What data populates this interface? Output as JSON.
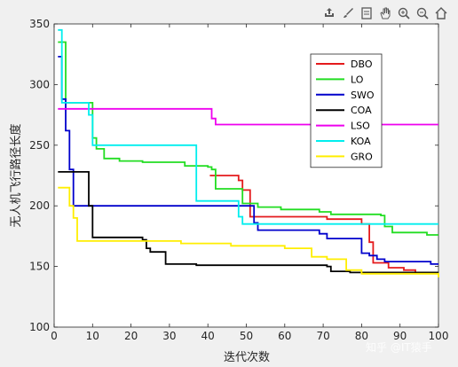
{
  "toolbar": {
    "icons": [
      "export-icon",
      "brush-icon",
      "datatip-icon",
      "pan-icon",
      "zoom-in-icon",
      "zoom-out-icon",
      "home-icon"
    ]
  },
  "watermark": "知乎 @IT猿手",
  "chart_data": {
    "type": "line",
    "ylabel": "无人机飞行路径长度",
    "xlabel": "迭代次数",
    "xlim": [
      0,
      100
    ],
    "ylim": [
      100,
      350
    ],
    "xticks": [
      0,
      10,
      20,
      30,
      40,
      50,
      60,
      70,
      80,
      90,
      100
    ],
    "yticks": [
      100,
      150,
      200,
      250,
      300,
      350
    ],
    "grid": false,
    "legend_position": "top-right",
    "series": [
      {
        "name": "DBO",
        "color": "#e41a1c",
        "points": [
          [
            40.5,
            225
          ],
          [
            48,
            225
          ],
          [
            48,
            221
          ],
          [
            49,
            221
          ],
          [
            49,
            213
          ],
          [
            51,
            213
          ],
          [
            51,
            191
          ],
          [
            71,
            191
          ],
          [
            71,
            189
          ],
          [
            80,
            189
          ],
          [
            80,
            185
          ],
          [
            82,
            185
          ],
          [
            82,
            170
          ],
          [
            83,
            170
          ],
          [
            83,
            153
          ],
          [
            87,
            153
          ],
          [
            87,
            149
          ],
          [
            91,
            149
          ],
          [
            91,
            147
          ],
          [
            94,
            147
          ],
          [
            94,
            145
          ],
          [
            100,
            145
          ]
        ]
      },
      {
        "name": "LO",
        "color": "#22dd22",
        "points": [
          [
            1,
            335
          ],
          [
            3,
            335
          ],
          [
            3,
            285
          ],
          [
            10,
            285
          ],
          [
            10,
            256
          ],
          [
            11,
            256
          ],
          [
            11,
            247
          ],
          [
            13,
            247
          ],
          [
            13,
            239
          ],
          [
            17,
            239
          ],
          [
            17,
            237
          ],
          [
            23,
            237
          ],
          [
            23,
            236
          ],
          [
            34,
            236
          ],
          [
            34,
            233
          ],
          [
            40,
            233
          ],
          [
            40,
            232
          ],
          [
            41,
            232
          ],
          [
            41,
            230
          ],
          [
            42,
            230
          ],
          [
            42,
            214
          ],
          [
            49,
            214
          ],
          [
            49,
            202
          ],
          [
            53,
            202
          ],
          [
            53,
            199
          ],
          [
            59,
            199
          ],
          [
            59,
            197
          ],
          [
            69,
            197
          ],
          [
            69,
            195
          ],
          [
            72,
            195
          ],
          [
            72,
            193
          ],
          [
            85,
            193
          ],
          [
            85,
            192
          ],
          [
            86,
            192
          ],
          [
            86,
            183
          ],
          [
            88,
            183
          ],
          [
            88,
            178
          ],
          [
            97,
            178
          ],
          [
            97,
            176
          ],
          [
            100,
            176
          ]
        ]
      },
      {
        "name": "SWO",
        "color": "#0000cc",
        "points": [
          [
            1,
            323
          ],
          [
            2,
            323
          ],
          [
            2,
            288
          ],
          [
            3,
            288
          ],
          [
            3,
            262
          ],
          [
            4,
            262
          ],
          [
            4,
            230
          ],
          [
            5,
            230
          ],
          [
            5,
            200
          ],
          [
            52,
            200
          ],
          [
            52,
            186
          ],
          [
            53,
            186
          ],
          [
            53,
            180
          ],
          [
            69,
            180
          ],
          [
            69,
            177
          ],
          [
            71,
            177
          ],
          [
            71,
            173
          ],
          [
            80,
            173
          ],
          [
            80,
            161
          ],
          [
            82,
            161
          ],
          [
            82,
            159
          ],
          [
            84,
            159
          ],
          [
            84,
            156
          ],
          [
            86,
            156
          ],
          [
            86,
            154
          ],
          [
            98,
            154
          ],
          [
            98,
            152
          ],
          [
            100,
            152
          ]
        ]
      },
      {
        "name": "COA",
        "color": "#000000",
        "points": [
          [
            1,
            228
          ],
          [
            9,
            228
          ],
          [
            9,
            200
          ],
          [
            10,
            200
          ],
          [
            10,
            174
          ],
          [
            23,
            174
          ],
          [
            23,
            172
          ],
          [
            24,
            172
          ],
          [
            24,
            165
          ],
          [
            25,
            165
          ],
          [
            25,
            162
          ],
          [
            29,
            162
          ],
          [
            29,
            152
          ],
          [
            37,
            152
          ],
          [
            37,
            151
          ],
          [
            71,
            151
          ],
          [
            71,
            150
          ],
          [
            72,
            150
          ],
          [
            72,
            146
          ],
          [
            77,
            146
          ],
          [
            77,
            145
          ],
          [
            100,
            145
          ]
        ]
      },
      {
        "name": "LSO",
        "color": "#ee00ee",
        "points": [
          [
            1,
            280
          ],
          [
            41,
            280
          ],
          [
            41,
            272
          ],
          [
            42,
            272
          ],
          [
            42,
            267
          ],
          [
            100,
            267
          ]
        ]
      },
      {
        "name": "KOA",
        "color": "#00eeee",
        "points": [
          [
            1,
            345
          ],
          [
            2,
            345
          ],
          [
            2,
            285
          ],
          [
            9,
            285
          ],
          [
            9,
            275
          ],
          [
            10,
            275
          ],
          [
            10,
            250
          ],
          [
            37,
            250
          ],
          [
            37,
            204
          ],
          [
            48,
            204
          ],
          [
            48,
            191
          ],
          [
            49,
            191
          ],
          [
            49,
            185
          ],
          [
            100,
            185
          ]
        ]
      },
      {
        "name": "GRO",
        "color": "#ffee00",
        "points": [
          [
            1,
            215
          ],
          [
            4,
            215
          ],
          [
            4,
            200
          ],
          [
            5,
            200
          ],
          [
            5,
            190
          ],
          [
            6,
            190
          ],
          [
            6,
            171
          ],
          [
            33,
            171
          ],
          [
            33,
            169
          ],
          [
            46,
            169
          ],
          [
            46,
            167
          ],
          [
            60,
            167
          ],
          [
            60,
            165
          ],
          [
            67,
            165
          ],
          [
            67,
            158
          ],
          [
            71,
            158
          ],
          [
            71,
            156
          ],
          [
            76,
            156
          ],
          [
            76,
            147
          ],
          [
            80,
            147
          ],
          [
            80,
            144
          ],
          [
            100,
            144
          ],
          [
            100,
            141
          ]
        ]
      }
    ]
  }
}
